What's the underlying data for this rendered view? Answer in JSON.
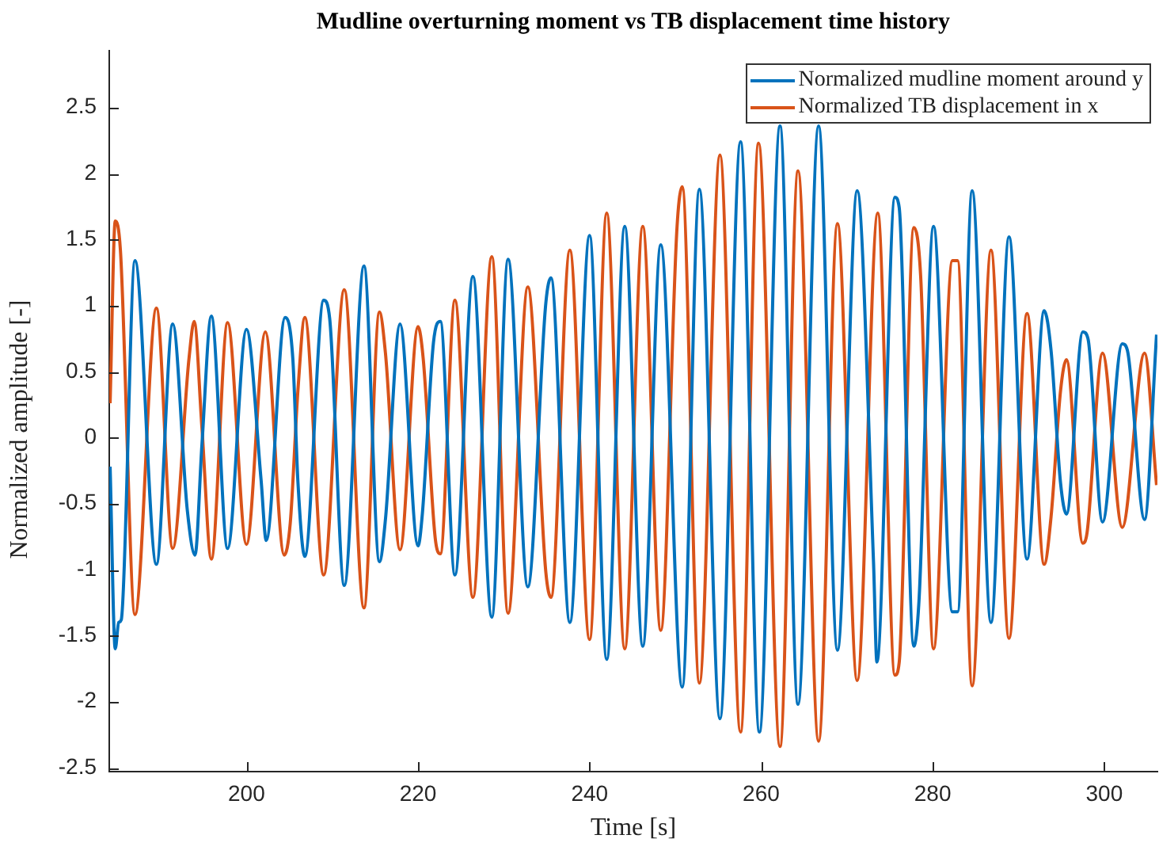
{
  "chart_data": {
    "type": "line",
    "title": "Mudline overturning moment vs TB displacement time history",
    "xlabel": "Time [s]",
    "ylabel": "Normalized amplitude [-]",
    "xlim": [
      184,
      306.2
    ],
    "xticks": [
      200,
      220,
      240,
      260,
      280,
      300
    ],
    "ylim": [
      -2.53,
      2.93
    ],
    "yticks": [
      -2.5,
      -2,
      -1.5,
      -1,
      -0.5,
      0,
      0.5,
      1,
      1.5,
      2,
      2.5
    ],
    "grid": false,
    "legend": "top right",
    "marker": "none",
    "line_style": "solid",
    "series": [
      {
        "name": "Normalized mudline moment around y",
        "color": "#0072bd",
        "x": [
          184.1,
          184.7,
          185.1,
          185.4,
          187.0,
          189.5,
          191.4,
          193.1,
          194.0,
          194.8,
          195.9,
          197.8,
          200.0,
          201.7,
          202.3,
          204.5,
          205.4,
          206.0,
          206.8,
          209.0,
          209.7,
          211.4,
          213.7,
          215.5,
          216.2,
          217.9,
          220.0,
          220.5,
          221.8,
          222.6,
          224.3,
          226.4,
          228.6,
          230.5,
          232.8,
          234.9,
          235.5,
          237.7,
          240.0,
          242.0,
          244.1,
          246.2,
          248.3,
          250.8,
          252.8,
          255.2,
          257.6,
          259.8,
          262.2,
          264.3,
          266.7,
          268.9,
          271.2,
          273.1,
          273.5,
          275.6,
          276.1,
          277.8,
          278.4,
          280.1,
          282.3,
          282.9,
          284.6,
          286.8,
          288.9,
          291.0,
          293.0,
          293.8,
          294.9,
          295.6,
          297.5,
          298.1,
          299.8,
          302.1,
          302.7,
          304.7,
          306.1
        ],
        "values": [
          -0.22,
          -1.6,
          -1.4,
          -1.38,
          1.34,
          -0.96,
          0.86,
          -0.55,
          -0.89,
          -0.06,
          0.92,
          -0.84,
          0.82,
          -0.32,
          -0.78,
          0.91,
          0.6,
          -0.34,
          -0.9,
          1.04,
          0.9,
          -1.12,
          1.3,
          -0.94,
          -0.62,
          0.86,
          -0.82,
          -0.58,
          0.72,
          0.88,
          -1.04,
          1.22,
          -1.36,
          1.35,
          -1.13,
          1.02,
          1.21,
          -1.4,
          1.53,
          -1.68,
          1.6,
          -1.58,
          1.46,
          -1.89,
          1.88,
          -2.13,
          2.24,
          -2.23,
          2.36,
          -2.02,
          2.36,
          -1.61,
          1.87,
          -0.94,
          -1.7,
          1.82,
          1.74,
          -1.58,
          -1.24,
          1.6,
          -1.32,
          -1.32,
          1.87,
          -1.4,
          1.52,
          -0.92,
          0.96,
          0.66,
          -0.34,
          -0.58,
          0.8,
          0.75,
          -0.64,
          0.71,
          0.66,
          -0.62,
          0.78
        ]
      },
      {
        "name": "Normalized TB displacement in x",
        "color": "#d95319",
        "x": [
          184.1,
          184.7,
          185.3,
          187.0,
          189.5,
          191.4,
          193.3,
          193.9,
          194.8,
          195.9,
          197.8,
          200.0,
          202.2,
          204.4,
          205.1,
          206.0,
          206.8,
          209.0,
          211.4,
          213.7,
          215.5,
          216.2,
          217.9,
          220.0,
          220.6,
          222.0,
          222.6,
          224.3,
          226.4,
          228.6,
          230.5,
          232.8,
          234.9,
          235.5,
          237.7,
          240.0,
          242.0,
          244.1,
          246.2,
          248.3,
          250.2,
          250.8,
          252.8,
          255.2,
          257.6,
          259.7,
          262.2,
          264.3,
          266.7,
          268.9,
          271.2,
          273.6,
          275.6,
          276.1,
          277.8,
          278.6,
          280.1,
          282.3,
          282.9,
          284.6,
          286.8,
          288.9,
          291.0,
          293.0,
          293.8,
          294.9,
          295.6,
          297.5,
          298.0,
          299.8,
          302.1,
          304.7,
          306.1
        ],
        "values": [
          0.26,
          1.64,
          1.42,
          -1.34,
          0.98,
          -0.84,
          0.6,
          0.88,
          0.08,
          -0.92,
          0.87,
          -0.81,
          0.8,
          -0.89,
          -0.65,
          0.36,
          0.91,
          -1.04,
          1.12,
          -1.29,
          0.95,
          0.64,
          -0.85,
          0.84,
          0.6,
          -0.76,
          -0.88,
          1.04,
          -1.21,
          1.37,
          -1.33,
          1.14,
          -1.02,
          -1.21,
          1.42,
          -1.53,
          1.7,
          -1.6,
          1.6,
          -1.46,
          1.6,
          1.9,
          -1.86,
          2.14,
          -2.23,
          2.23,
          -2.34,
          2.02,
          -2.3,
          1.62,
          -1.84,
          1.7,
          -1.8,
          -1.7,
          1.59,
          1.22,
          -1.6,
          1.34,
          1.34,
          -1.88,
          1.42,
          -1.52,
          0.94,
          -0.96,
          -0.6,
          0.35,
          0.59,
          -0.8,
          -0.72,
          0.64,
          -0.68,
          0.64,
          -0.36
        ]
      }
    ]
  }
}
